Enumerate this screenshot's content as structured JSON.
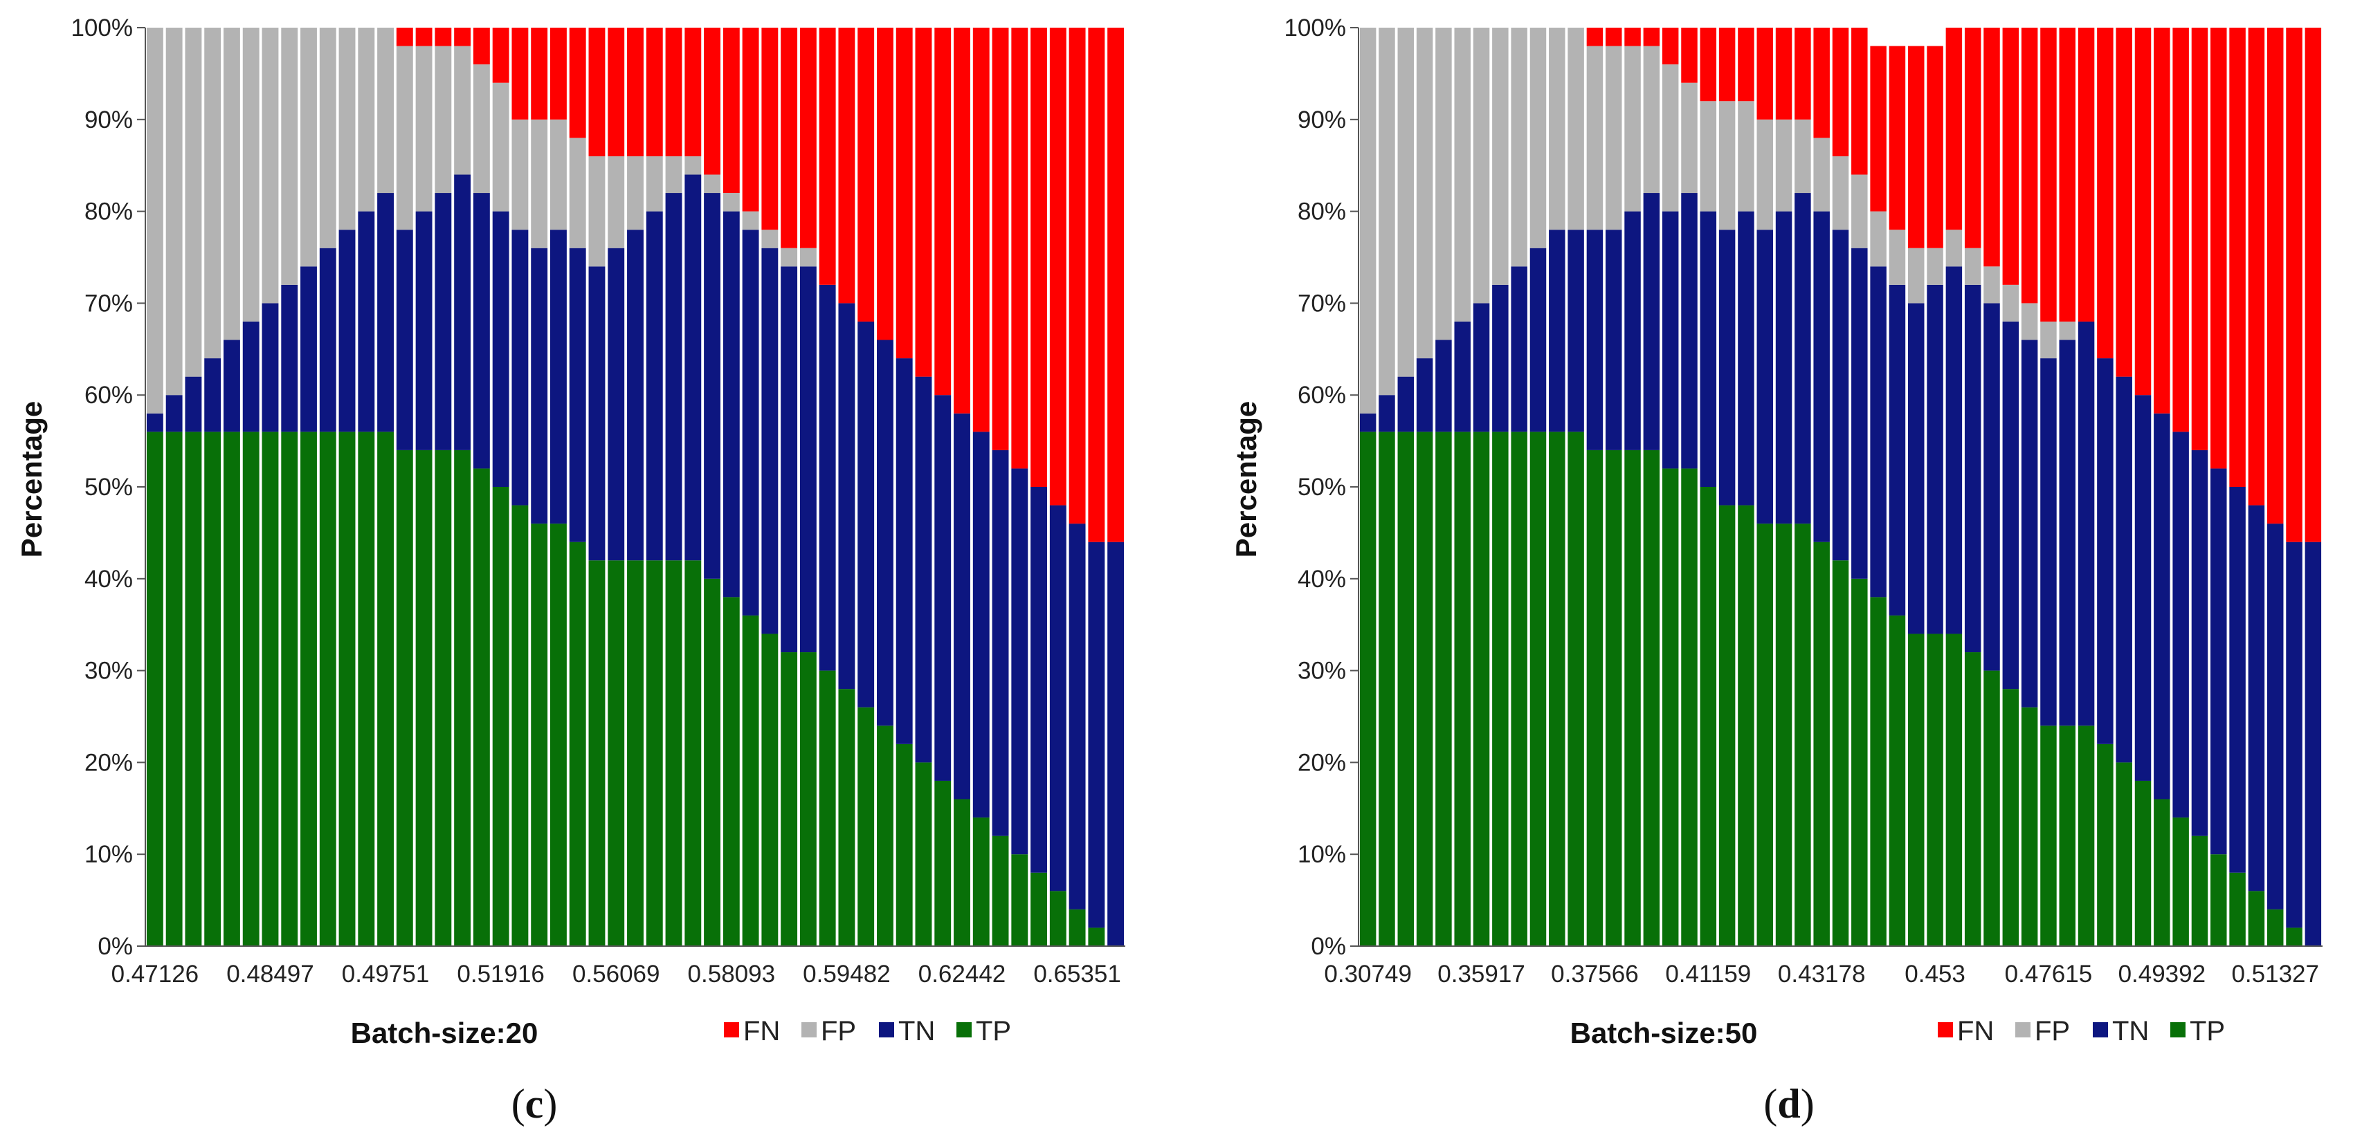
{
  "colors": {
    "FN": "#ff0000",
    "FP": "#b3b3b3",
    "TN": "#0d1680",
    "TP": "#087008"
  },
  "chart_data": [
    {
      "type": "bar",
      "stacked": true,
      "panel_label": "c",
      "xlabel": "Batch-size:20",
      "ylabel": "Percentage",
      "ylim": [
        0,
        100
      ],
      "yticks": [
        "0%",
        "10%",
        "20%",
        "30%",
        "40%",
        "50%",
        "60%",
        "70%",
        "80%",
        "90%",
        "100%"
      ],
      "xtick_labels": [
        "0.47126",
        "0.48497",
        "0.49751",
        "0.51916",
        "0.56069",
        "0.58093",
        "0.59482",
        "0.62442",
        "0.65351"
      ],
      "xtick_every": 6,
      "legend": [
        "FN",
        "FP",
        "TN",
        "TP"
      ],
      "series": [
        {
          "name": "TP",
          "values": [
            56,
            56,
            56,
            56,
            56,
            56,
            56,
            56,
            56,
            56,
            56,
            56,
            56,
            54,
            54,
            54,
            54,
            52,
            50,
            48,
            46,
            46,
            44,
            42,
            42,
            42,
            42,
            42,
            42,
            40,
            38,
            36,
            34,
            32,
            32,
            30,
            28,
            26,
            24,
            22,
            20,
            18,
            16,
            14,
            12,
            10,
            8,
            6,
            4,
            2,
            0
          ]
        },
        {
          "name": "TN",
          "values": [
            2,
            4,
            6,
            8,
            10,
            12,
            14,
            16,
            18,
            20,
            22,
            24,
            26,
            24,
            26,
            28,
            30,
            30,
            30,
            30,
            30,
            32,
            32,
            32,
            34,
            36,
            38,
            40,
            42,
            42,
            42,
            42,
            42,
            42,
            42,
            42,
            42,
            42,
            42,
            42,
            42,
            42,
            42,
            42,
            42,
            42,
            42,
            42,
            42,
            42,
            44
          ]
        },
        {
          "name": "FP",
          "values": [
            42,
            40,
            38,
            36,
            34,
            32,
            30,
            28,
            26,
            24,
            22,
            20,
            18,
            20,
            18,
            16,
            14,
            14,
            14,
            12,
            14,
            12,
            12,
            12,
            10,
            8,
            6,
            4,
            2,
            2,
            2,
            2,
            2,
            2,
            2,
            0,
            0,
            0,
            0,
            0,
            0,
            0,
            0,
            0,
            0,
            0,
            0,
            0,
            0,
            0,
            0
          ]
        },
        {
          "name": "FN",
          "values": [
            0,
            0,
            0,
            0,
            0,
            0,
            0,
            0,
            0,
            0,
            0,
            0,
            0,
            2,
            2,
            2,
            2,
            4,
            6,
            10,
            10,
            10,
            12,
            14,
            14,
            14,
            14,
            14,
            14,
            16,
            18,
            20,
            22,
            24,
            24,
            28,
            30,
            32,
            34,
            36,
            38,
            40,
            42,
            44,
            46,
            48,
            50,
            52,
            54,
            56,
            56
          ]
        }
      ]
    },
    {
      "type": "bar",
      "stacked": true,
      "panel_label": "d",
      "xlabel": "Batch-size:50",
      "ylabel": "Percentage",
      "ylim": [
        0,
        100
      ],
      "yticks": [
        "0%",
        "10%",
        "20%",
        "30%",
        "40%",
        "50%",
        "60%",
        "70%",
        "80%",
        "90%",
        "100%"
      ],
      "xtick_labels": [
        "0.30749",
        "0.35917",
        "0.37566",
        "0.41159",
        "0.43178",
        "0.453",
        "0.47615",
        "0.49392",
        "0.51327"
      ],
      "xtick_every": 6,
      "legend": [
        "FN",
        "FP",
        "TN",
        "TP"
      ],
      "series": [
        {
          "name": "TP",
          "values": [
            56,
            56,
            56,
            56,
            56,
            56,
            56,
            56,
            56,
            56,
            56,
            56,
            54,
            54,
            54,
            54,
            52,
            52,
            50,
            48,
            48,
            46,
            46,
            46,
            44,
            42,
            40,
            38,
            36,
            34,
            34,
            34,
            32,
            30,
            28,
            26,
            24,
            24,
            24,
            22,
            20,
            18,
            16,
            14,
            12,
            10,
            8,
            6,
            4,
            2,
            0
          ]
        },
        {
          "name": "TN",
          "values": [
            2,
            4,
            6,
            8,
            10,
            12,
            14,
            16,
            18,
            20,
            22,
            22,
            24,
            24,
            26,
            28,
            28,
            30,
            30,
            30,
            32,
            32,
            34,
            36,
            36,
            36,
            36,
            36,
            36,
            36,
            38,
            40,
            40,
            40,
            40,
            40,
            40,
            42,
            44,
            42,
            42,
            42,
            42,
            42,
            42,
            42,
            42,
            42,
            42,
            42,
            44
          ]
        },
        {
          "name": "FP",
          "values": [
            42,
            40,
            38,
            36,
            34,
            32,
            30,
            28,
            26,
            24,
            22,
            22,
            20,
            20,
            18,
            16,
            16,
            12,
            12,
            14,
            12,
            12,
            10,
            8,
            8,
            8,
            8,
            6,
            6,
            6,
            4,
            4,
            4,
            4,
            4,
            4,
            4,
            2,
            0,
            0,
            0,
            0,
            0,
            0,
            0,
            0,
            0,
            0,
            0,
            0,
            0
          ]
        },
        {
          "name": "FN",
          "values": [
            0,
            0,
            0,
            0,
            0,
            0,
            0,
            0,
            0,
            0,
            0,
            0,
            2,
            2,
            2,
            2,
            4,
            6,
            8,
            8,
            8,
            10,
            10,
            10,
            12,
            14,
            16,
            18,
            20,
            22,
            22,
            22,
            24,
            26,
            28,
            30,
            32,
            32,
            32,
            36,
            38,
            40,
            42,
            44,
            46,
            48,
            50,
            52,
            54,
            56,
            56
          ]
        }
      ]
    }
  ]
}
